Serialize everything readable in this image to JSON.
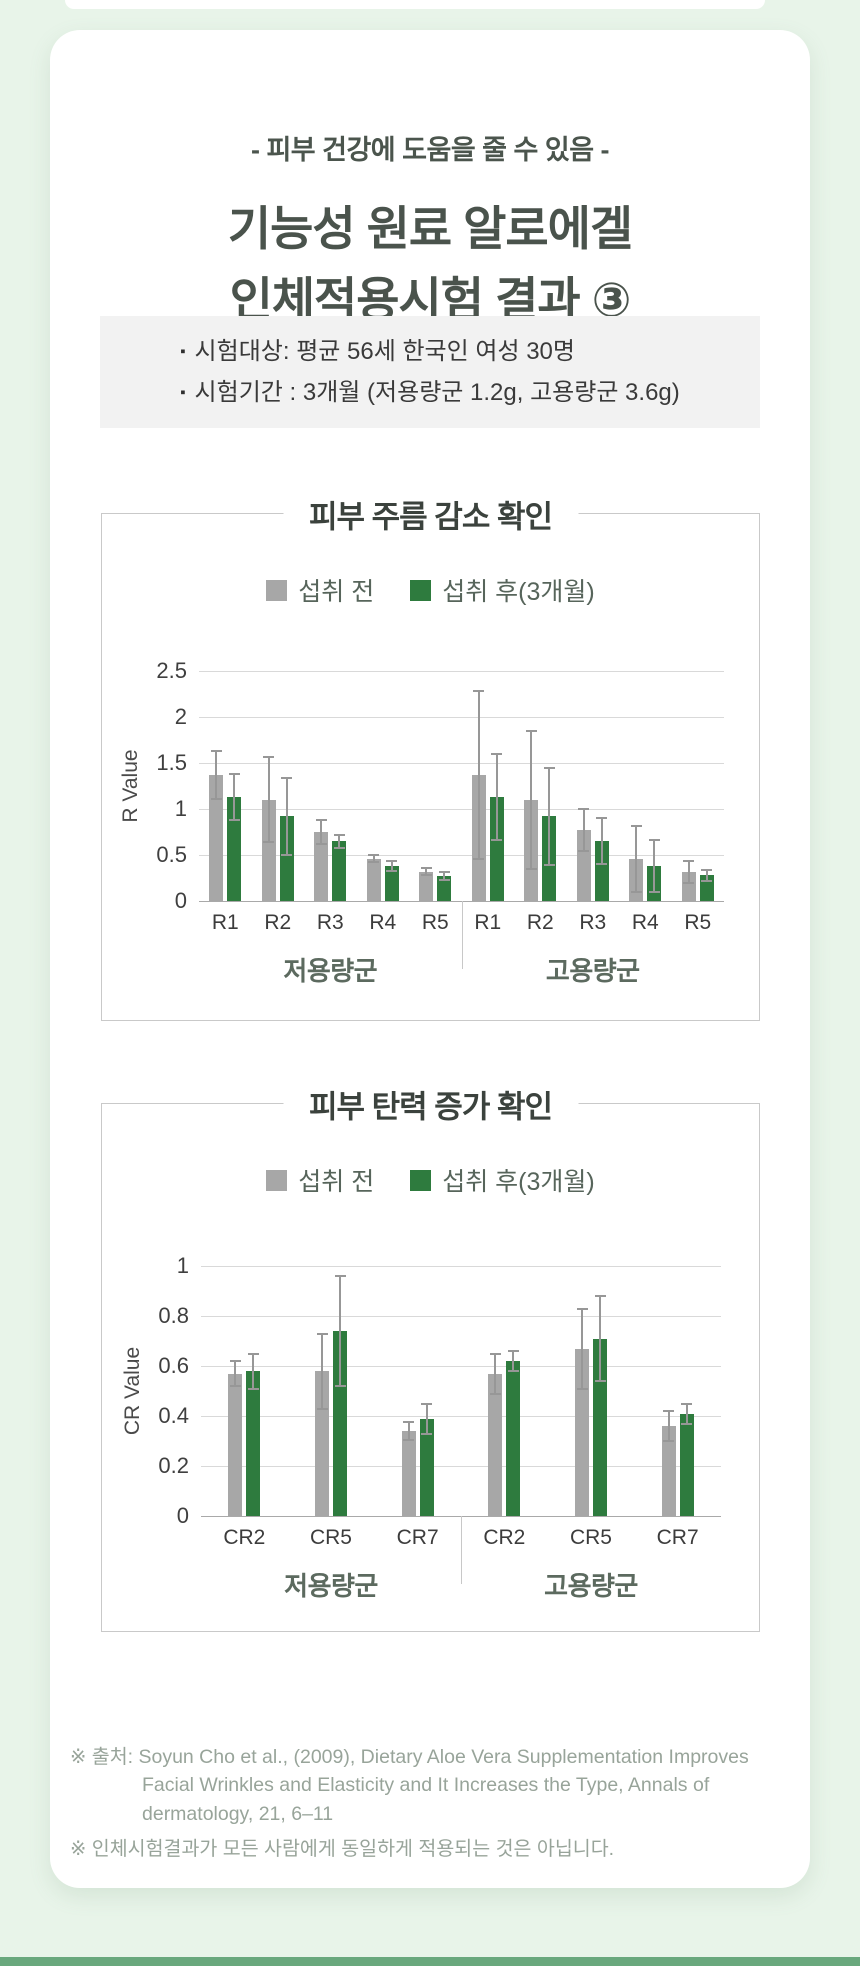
{
  "page": {
    "bg_color": "#e8f4e9",
    "card_color": "#ffffff",
    "bottom_bar_color": "#69a87d"
  },
  "header": {
    "subtitle": "- 피부 건강에 도움을 줄 수 있음 -",
    "title_line1": "기능성 원료 알로에겔",
    "title_line2": "인체적용시험 결과 ③"
  },
  "info_box": {
    "bullet": "▪",
    "items": [
      "시험대상: 평균 56세 한국인 여성 30명",
      "시험기간 : 3개월 (저용량군 1.2g, 고용량군 3.6g)"
    ]
  },
  "chart_data": [
    {
      "type": "bar",
      "title": "피부 주름 감소 확인",
      "ylabel": "R Value",
      "ylim": [
        0,
        2.5
      ],
      "yticks": [
        "0",
        "0.5",
        "1",
        "1.5",
        "2",
        "2.5"
      ],
      "grid": true,
      "legend_position": "top",
      "categories": [
        "R1",
        "R2",
        "R3",
        "R4",
        "R5",
        "R1",
        "R2",
        "R3",
        "R4",
        "R5"
      ],
      "groups": [
        {
          "label": "저용량군",
          "size": 5
        },
        {
          "label": "고용량군",
          "size": 5
        }
      ],
      "series": [
        {
          "name": "섭취 전",
          "color": "#a7a7a7",
          "values": [
            1.37,
            1.1,
            0.75,
            0.46,
            0.32,
            1.37,
            1.1,
            0.77,
            0.46,
            0.32
          ],
          "error_top": [
            1.63,
            1.56,
            0.88,
            0.5,
            0.36,
            2.28,
            1.85,
            1.0,
            0.82,
            0.44
          ]
        },
        {
          "name": "섭취 후(3개월)",
          "color": "#2e7b3e",
          "values": [
            1.13,
            0.92,
            0.65,
            0.38,
            0.27,
            1.13,
            0.92,
            0.65,
            0.38,
            0.28
          ],
          "error_top": [
            1.38,
            1.34,
            0.72,
            0.43,
            0.31,
            1.6,
            1.45,
            0.9,
            0.66,
            0.34
          ]
        }
      ]
    },
    {
      "type": "bar",
      "title": "피부 탄력 증가 확인",
      "ylabel": "CR Value",
      "ylim": [
        0,
        1
      ],
      "yticks": [
        "0",
        "0.2",
        "0.4",
        "0.6",
        "0.8",
        "1"
      ],
      "grid": true,
      "legend_position": "top",
      "categories": [
        "CR2",
        "CR5",
        "CR7",
        "CR2",
        "CR5",
        "CR7"
      ],
      "groups": [
        {
          "label": "저용량군",
          "size": 3
        },
        {
          "label": "고용량군",
          "size": 3
        }
      ],
      "series": [
        {
          "name": "섭취 전",
          "color": "#a7a7a7",
          "values": [
            0.57,
            0.58,
            0.34,
            0.57,
            0.67,
            0.36
          ],
          "error_top": [
            0.62,
            0.73,
            0.375,
            0.65,
            0.83,
            0.42
          ]
        },
        {
          "name": "섭취 후(3개월)",
          "color": "#2e7b3e",
          "values": [
            0.58,
            0.74,
            0.39,
            0.62,
            0.71,
            0.41
          ],
          "error_top": [
            0.65,
            0.96,
            0.45,
            0.66,
            0.88,
            0.45
          ]
        }
      ]
    }
  ],
  "footer": {
    "line1": "※ 출처: Soyun Cho et al., (2009), Dietary Aloe Vera Supplementation Improves Facial Wrinkles and Elasticity and It Increases the Type, Annals of dermatology, 21, 6–11",
    "line2": "※ 인체시험결과가 모든 사람에게 동일하게 적용되는 것은 아닙니다."
  }
}
